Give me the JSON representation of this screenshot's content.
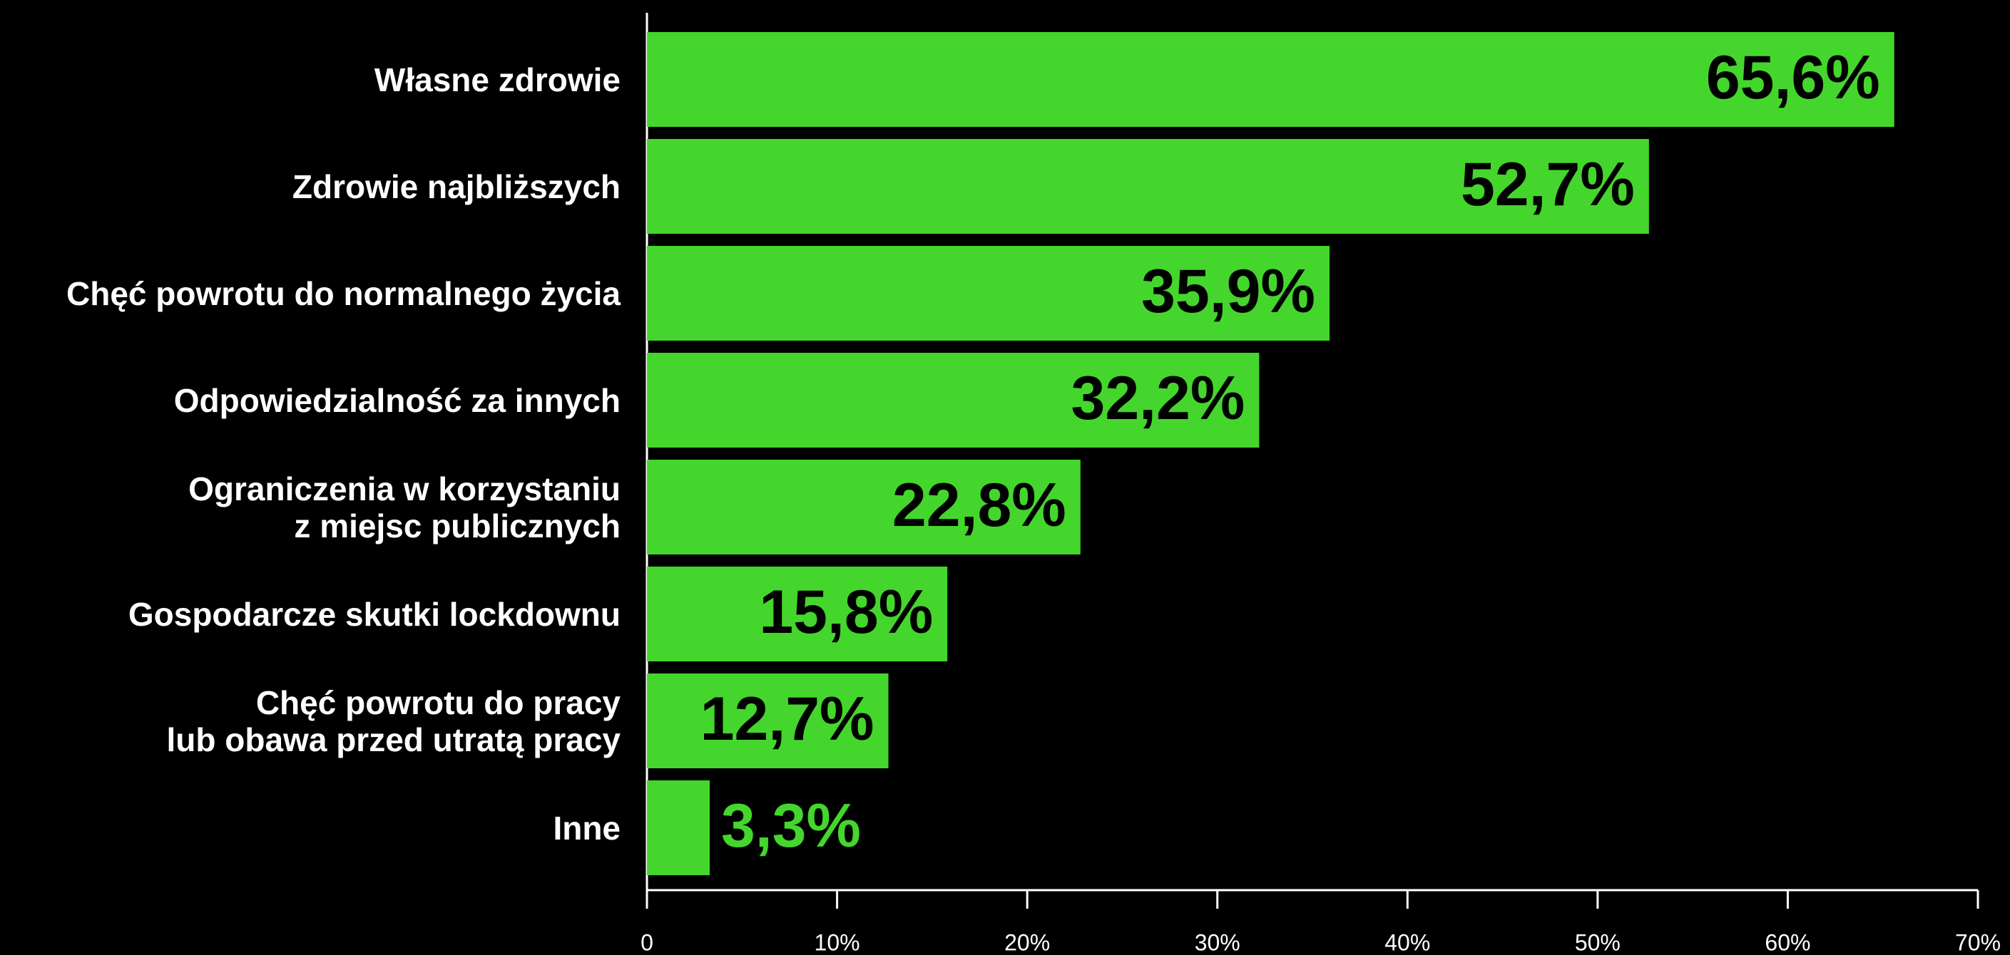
{
  "chart_data": {
    "type": "hbar",
    "categories": [
      "Własne zdrowie",
      "Zdrowie najbliższych",
      "Chęć powrotu do normalnego życia",
      "Odpowiedzialność za innych",
      "Ograniczenia w korzystaniu\nz miejsc publicznych",
      "Gospodarcze skutki lockdownu",
      "Chęć powrotu do pracy\nlub obawa przed utratą pracy",
      "Inne"
    ],
    "values": [
      65.6,
      52.7,
      35.9,
      32.2,
      22.8,
      15.8,
      12.7,
      3.3
    ],
    "value_labels": [
      "65,6%",
      "52,7%",
      "35,9%",
      "32,2%",
      "22,8%",
      "15,8%",
      "12,7%",
      "3,3%"
    ],
    "color": "#44d62c",
    "xlim": [
      0,
      70
    ],
    "xticks": [
      0,
      {
        "value": 10,
        "label": "10%"
      },
      {
        "value": 20,
        "label": "20%"
      },
      {
        "value": 30,
        "label": "30%"
      },
      {
        "value": 40,
        "label": "40%"
      },
      {
        "value": 50,
        "label": "50%"
      },
      {
        "value": 60,
        "label": "60%"
      },
      {
        "value": 70,
        "label": "70%"
      }
    ]
  }
}
